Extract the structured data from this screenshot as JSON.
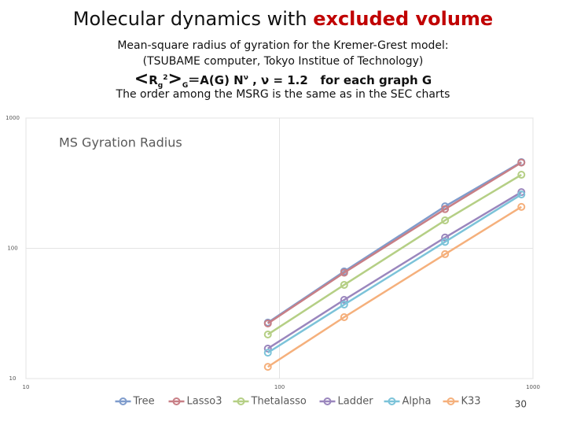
{
  "header": {
    "title": [
      "Molecular dynamics",
      "with",
      "excluded volume"
    ],
    "subtitle_lines": [
      "Mean-square radius of gyration for the Kremer-Grest model:",
      "(TSUBAME computer, Tokyo Institue of Technology)"
    ],
    "formula": [
      "<",
      "R",
      "g",
      "2",
      ">",
      "G",
      "＝A(G) N",
      "ν",
      " ,  ν = 1.2",
      "for each graph G"
    ],
    "note": "The order among the MSRG is the same as in the SEC charts"
  },
  "page_number": "30",
  "chart_data": {
    "type": "line",
    "title": "MS Gyration Radius",
    "x": [
      90,
      180,
      450,
      900
    ],
    "series": [
      {
        "name": "Tree",
        "color": "#7f9ccc",
        "values": [
          26.9,
          66.4,
          210,
          459
        ]
      },
      {
        "name": "Lasso3",
        "color": "#c87f86",
        "values": [
          26.5,
          65,
          200,
          455
        ]
      },
      {
        "name": "Thetalasso",
        "color": "#b5cf85",
        "values": [
          21.8,
          52.4,
          164,
          367
        ]
      },
      {
        "name": "Ladder",
        "color": "#9a86bd",
        "values": [
          17.0,
          40.2,
          121,
          270
        ]
      },
      {
        "name": "Alpha",
        "color": "#7cc3d9",
        "values": [
          15.8,
          37.0,
          112,
          259
        ]
      },
      {
        "name": "K33",
        "color": "#f5b07c",
        "values": [
          12.3,
          29.6,
          90.2,
          208
        ]
      }
    ],
    "xlim": [
      10,
      1000
    ],
    "ylim": [
      10,
      1000
    ],
    "xticks": [
      10,
      100,
      1000
    ],
    "yticks": [
      10,
      100,
      1000
    ],
    "xscale": "log",
    "yscale": "log",
    "grid": true,
    "legend": "bottom"
  }
}
